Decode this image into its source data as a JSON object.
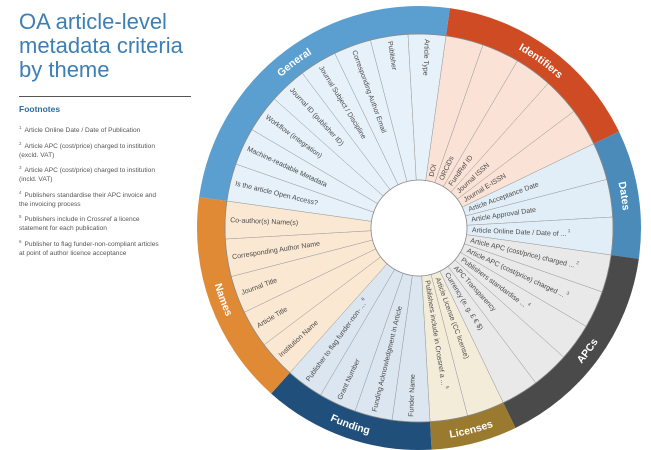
{
  "title_lines": [
    "OA article-level",
    "metadata criteria",
    "by theme"
  ],
  "footnotes": {
    "heading": "Footnotes",
    "items": [
      {
        "num": "1",
        "lines": [
          "Article Online Date / Date of Publication"
        ]
      },
      {
        "num": "2",
        "lines": [
          "Article APC  (cost/price) charged to institution",
          "(excld. VAT)"
        ]
      },
      {
        "num": "3",
        "lines": [
          "Article APC  (cost/price) charged to institution",
          "(incld. VAT)"
        ]
      },
      {
        "num": "4",
        "lines": [
          "Publishers standardise their APC invoice and",
          "the invoicing process"
        ]
      },
      {
        "num": "5",
        "lines": [
          "Publishers include in Crossref a licence",
          "statement for each publication"
        ]
      },
      {
        "num": "6",
        "lines": [
          "Publisher to flag funder-non-compliant articles",
          "at point of author licence acceptance"
        ]
      }
    ]
  },
  "wheel": {
    "themes": [
      {
        "name": "Identifiers",
        "color": "#cf4b24",
        "tint": "#fbe2d6",
        "items": [
          {
            "text": "DOI"
          },
          {
            "text": "ORCiDs"
          },
          {
            "text": "FundRef ID"
          },
          {
            "text": "Journal ISSN"
          },
          {
            "text": "Journal E-ISSN"
          }
        ]
      },
      {
        "name": "Dates",
        "color": "#4a8bb9",
        "tint": "#e2eef7",
        "items": [
          {
            "text": "Article Acceptance Date"
          },
          {
            "text": "Article Approval Date"
          },
          {
            "text": "Article Online Date / Date of ...",
            "sup": "1"
          }
        ]
      },
      {
        "name": "APCs",
        "color": "#4a4a4a",
        "tint": "#e9e9e9",
        "items": [
          {
            "text": "Article APC  (cost/price) charged ...",
            "sup": "2"
          },
          {
            "text": "Article APC  (cost/price) charged ...",
            "sup": "3"
          },
          {
            "text": "Publishers standardise ...",
            "sup": "4"
          },
          {
            "text": "APC Transparency"
          },
          {
            "text": "Currency (e. g. £ € $)"
          }
        ]
      },
      {
        "name": "Licenses",
        "color": "#9a7a2e",
        "tint": "#f3ecd9",
        "items": [
          {
            "text": "Article License (CC license)"
          },
          {
            "text": "Publishers include in Crossref a ...",
            "sup": "5"
          }
        ]
      },
      {
        "name": "Funding",
        "color": "#1f4f7a",
        "tint": "#dbe6f0",
        "items": [
          {
            "text": "Funder Name"
          },
          {
            "text": "Funding Acknowledgment in Article"
          },
          {
            "text": "Grant Number"
          },
          {
            "text": "Publisher to flag funder-non- ...",
            "sup": "6"
          }
        ]
      },
      {
        "name": "Names",
        "color": "#e08a35",
        "tint": "#fbe8d2",
        "items": [
          {
            "text": "Institution Name"
          },
          {
            "text": "Article Title"
          },
          {
            "text": "Journal Title"
          },
          {
            "text": "Corresponding Author Name"
          },
          {
            "text": "Co-author(s) Name(s)"
          }
        ]
      },
      {
        "name": "General",
        "color": "#5a9fcf",
        "tint": "#e6f1f9",
        "items": [
          {
            "text": "Is the article Open Access?"
          },
          {
            "text": "Machine-readable Metadata"
          },
          {
            "text": "Workflow (integration)"
          },
          {
            "text": "Journal ID (publisher ID)"
          },
          {
            "text": "Journal Subject / Discipline"
          },
          {
            "text": "Corresponding Author Email"
          },
          {
            "text": "Publisher"
          },
          {
            "text": "Article Type"
          }
        ]
      }
    ]
  }
}
